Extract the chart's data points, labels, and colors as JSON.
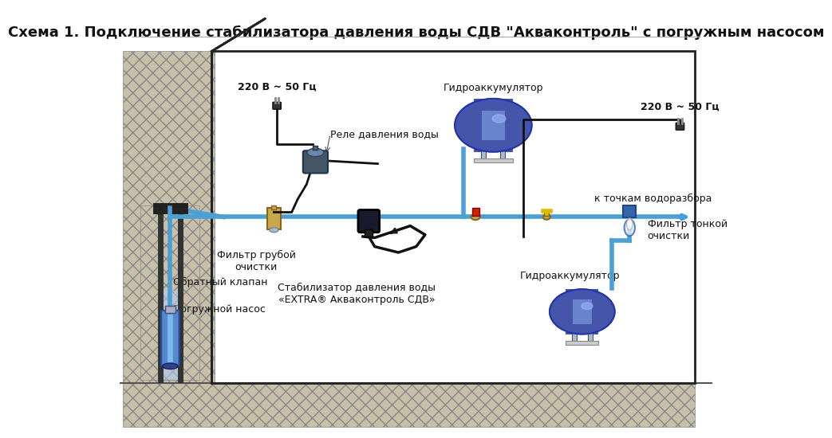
{
  "title": "Схема 1. Подключение стабилизатора давления воды СДВ \"Акваконтроль\" с погружным насосом",
  "title_fontsize": 13,
  "bg_color": "#ffffff",
  "ground_color": "#d4c9b0",
  "hatch_color": "#888888",
  "border_color": "#222222",
  "pipe_color": "#4a9fd4",
  "pipe_lw": 4,
  "wire_color": "#111111",
  "wire_lw": 2,
  "labels": {
    "power_left": "220 В ~ 50 Гц",
    "power_right": "220 В ~ 50 Гц",
    "relay": "Реле давления воды",
    "hydro_top": "Гидроаккумулятор",
    "hydro_bot": "Гидроаккумулятор",
    "filter_rough": "Фильтр грубой\nочистки",
    "filter_fine": "Фильтр тонкой\nочистки",
    "back_valve": "Обратный клапан",
    "pump": "Погружной насос",
    "stabilizer": "Стабилизатор давления воды\n«EXTRA® Акваконтроль СДВ»",
    "water_points": "к точкам водоразбора"
  },
  "colors": {
    "tank_body": "#4455aa",
    "tank_stripe": "#7799dd",
    "tank_light": "#aabbff",
    "tank_feet": "#aabbcc",
    "pump_body": "#5588cc",
    "pump_light": "#99ccff",
    "soil_fill": "#c8bfa8",
    "soil_hatch": "#999999",
    "brass": "#c8a84b",
    "red_valve": "#cc2200",
    "yellow_valve": "#ddbb00",
    "relay_body": "#445566",
    "relay_top": "#6688aa",
    "stabilizer_body": "#222222",
    "filter_body": "#dddddd",
    "filter_blue": "#3366aa",
    "arrow_color": "#3399ff"
  }
}
